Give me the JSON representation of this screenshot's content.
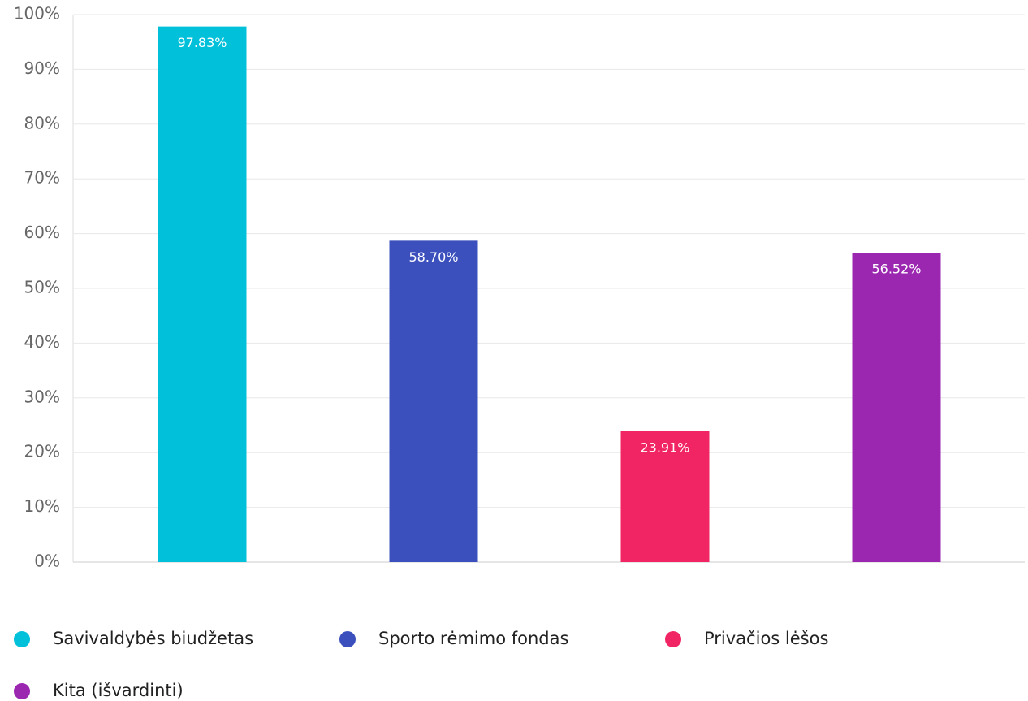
{
  "chart_data": {
    "type": "bar",
    "categories": [
      "Savivaldybės biudžetas",
      "Sporto rėmimo fondas",
      "Privačios lėšos",
      "Kita (išvardinti)"
    ],
    "values": [
      97.83,
      58.7,
      23.91,
      56.52
    ],
    "value_labels": [
      "97.83%",
      "58.70%",
      "23.91%",
      "56.52%"
    ],
    "colors": [
      "#00c0da",
      "#3b50bd",
      "#f12563",
      "#9b27b1"
    ],
    "ylim": [
      0,
      100
    ],
    "yticks": [
      {
        "value": 0,
        "label": "0%"
      },
      {
        "value": 10,
        "label": "10%"
      },
      {
        "value": 20,
        "label": "20%"
      },
      {
        "value": 30,
        "label": "30%"
      },
      {
        "value": 40,
        "label": "40%"
      },
      {
        "value": 50,
        "label": "50%"
      },
      {
        "value": 60,
        "label": "60%"
      },
      {
        "value": 70,
        "label": "70%"
      },
      {
        "value": 80,
        "label": "80%"
      },
      {
        "value": 90,
        "label": "90%"
      },
      {
        "value": 100,
        "label": "100%"
      }
    ],
    "grid": true
  }
}
